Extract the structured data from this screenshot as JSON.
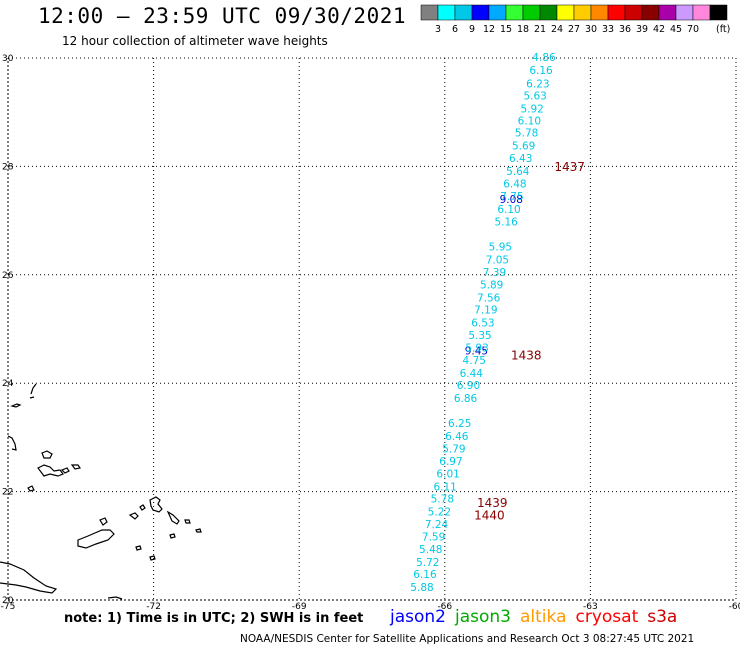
{
  "title": "12:00 – 23:59 UTC 09/30/2021",
  "subtitle": "12 hour collection of altimeter wave heights",
  "colorbar": {
    "colors": [
      "#808080",
      "#00ffff",
      "#00c8e6",
      "#0000ff",
      "#00aaff",
      "#33ff33",
      "#00cc00",
      "#008800",
      "#ffff00",
      "#ffcc00",
      "#ff8800",
      "#ff0000",
      "#cc0000",
      "#880000",
      "#aa00aa",
      "#cc99ff",
      "#ff88dd",
      "#000000"
    ],
    "labels": [
      "3",
      "6",
      "9",
      "12",
      "15",
      "18",
      "21",
      "24",
      "27",
      "30",
      "33",
      "36",
      "39",
      "42",
      "45",
      "70"
    ],
    "unit": "(ft)"
  },
  "axes": {
    "lon": {
      "min": -75,
      "max": -60,
      "ticks": [
        "-75",
        "-72",
        "-69",
        "-66",
        "-63",
        "-60"
      ]
    },
    "lat": {
      "min": 20,
      "max": 30,
      "ticks": [
        "20",
        "22",
        "24",
        "26",
        "28",
        "30"
      ]
    }
  },
  "chart_data": {
    "type": "scatter",
    "series": [
      {
        "name": "jason2",
        "color": "#0000cc",
        "points": [
          {
            "lat": 26.78,
            "label": "9.08"
          },
          {
            "lat": 23.59,
            "label": "9.45"
          }
        ]
      },
      {
        "name": "altimeter-cyan",
        "color": "#00c8e6",
        "points": [
          {
            "lat": 29.77,
            "label": "4.86"
          },
          {
            "lat": 29.5,
            "label": "6.16"
          },
          {
            "lat": 29.21,
            "label": "6.23"
          },
          {
            "lat": 28.96,
            "label": "5.63"
          },
          {
            "lat": 28.69,
            "label": "5.92"
          },
          {
            "lat": 28.43,
            "label": "6.10"
          },
          {
            "lat": 28.18,
            "label": "5.78"
          },
          {
            "lat": 27.91,
            "label": "5.69"
          },
          {
            "lat": 27.64,
            "label": "6.43"
          },
          {
            "lat": 27.37,
            "label": "5.64"
          },
          {
            "lat": 27.11,
            "label": "6.48"
          },
          {
            "lat": 26.84,
            "label": "7.75"
          },
          {
            "lat": 26.57,
            "label": "6.10"
          },
          {
            "lat": 26.31,
            "label": "5.16"
          },
          {
            "lat": 25.78,
            "label": "5.95"
          },
          {
            "lat": 25.51,
            "label": "7.05"
          },
          {
            "lat": 25.24,
            "label": "7.39"
          },
          {
            "lat": 24.98,
            "label": "5.89"
          },
          {
            "lat": 24.71,
            "label": "7.56"
          },
          {
            "lat": 24.45,
            "label": "7.19"
          },
          {
            "lat": 24.18,
            "label": "6.53"
          },
          {
            "lat": 23.92,
            "label": "5.35"
          },
          {
            "lat": 23.65,
            "label": "5.93"
          },
          {
            "lat": 23.39,
            "label": "4.75"
          },
          {
            "lat": 23.12,
            "label": "6.44"
          },
          {
            "lat": 22.86,
            "label": "6.90"
          },
          {
            "lat": 22.59,
            "label": "6.86"
          },
          {
            "lat": 22.06,
            "label": "6.25"
          },
          {
            "lat": 21.79,
            "label": "6.46"
          },
          {
            "lat": 21.53,
            "label": "5.79"
          },
          {
            "lat": 21.26,
            "label": "6.97"
          },
          {
            "lat": 21.0,
            "label": "6.01"
          },
          {
            "lat": 20.73,
            "label": "6.11"
          },
          {
            "lat": 20.47,
            "label": "5.78"
          },
          {
            "lat": 20.2,
            "label": "5.22"
          },
          {
            "lat": 19.94,
            "label": "7.24"
          },
          {
            "lat": 19.67,
            "label": "7.59"
          },
          {
            "lat": 19.41,
            "label": "5.48"
          },
          {
            "lat": 19.14,
            "label": "5.72"
          },
          {
            "lat": 18.88,
            "label": "6.16"
          },
          {
            "lat": 18.61,
            "label": "5.88"
          }
        ]
      }
    ],
    "time_labels": [
      {
        "text": "1437",
        "lat": 27.52
      },
      {
        "text": "1438",
        "lat": 23.55
      },
      {
        "text": "1439",
        "lat": 20.44
      },
      {
        "text": "1440",
        "lat": 20.18
      }
    ]
  },
  "note": "note:  1) Time is in UTC;  2) SWH is in feet",
  "missions": [
    {
      "name": "jason2",
      "color": "#0000ff"
    },
    {
      "name": "jason3",
      "color": "#00aa00"
    },
    {
      "name": "altika",
      "color": "#ff9900"
    },
    {
      "name": "cryosat",
      "color": "#ff0000"
    },
    {
      "name": "s3a",
      "color": "#cc0000"
    }
  ],
  "footer": "NOAA/NESDIS Center for Satellite Applications and Research    Oct  3 08:27:45 UTC 2021"
}
